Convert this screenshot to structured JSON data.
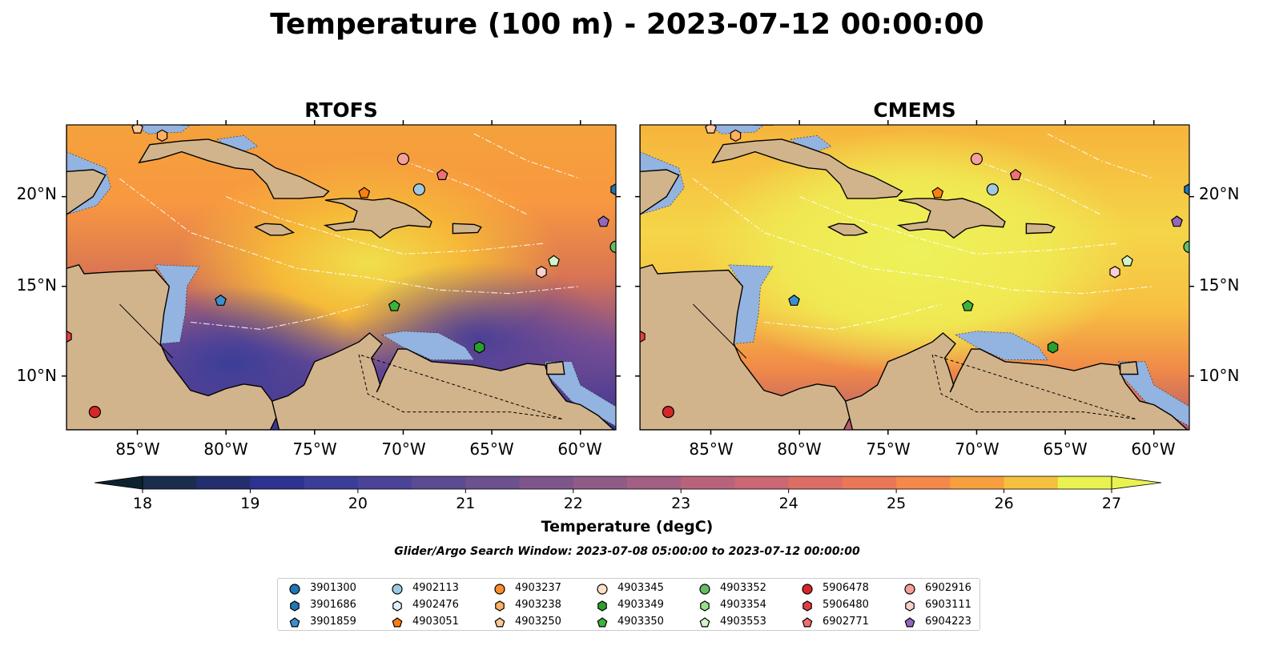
{
  "figure": {
    "title": "Temperature (100 m) - 2023-07-12 00:00:00",
    "search_window": "Glider/Argo Search Window: 2023-07-08 05:00:00 to 2023-07-12 00:00:00"
  },
  "panels": [
    {
      "title": "RTOFS",
      "model": "rtofs"
    },
    {
      "title": "CMEMS",
      "model": "cmems"
    }
  ],
  "map_extent": {
    "lon": [
      -89,
      -58
    ],
    "lat": [
      7,
      24
    ]
  },
  "x_ticks": [
    "85°W",
    "80°W",
    "75°W",
    "70°W",
    "65°W",
    "60°W"
  ],
  "y_ticks": [
    "20°N",
    "15°N",
    "10°N"
  ],
  "colorbar": {
    "label": "Temperature (degC)",
    "min": 18,
    "max": 27,
    "step": 0.5,
    "ticks": [
      "18",
      "19",
      "20",
      "21",
      "22",
      "23",
      "24",
      "25",
      "26",
      "27"
    ],
    "extend": "both",
    "colormap": "thermal"
  },
  "colors": {
    "land": "#d2b48c",
    "shelf": "#93b3e0",
    "coast": "#000000",
    "floats": {
      "blue": "#1f77b4",
      "lightblue": "#9ecae1",
      "orange": "#ff7f0e",
      "lightorange": "#ffbb78",
      "peach": "#fdd9b5",
      "green": "#2ca02c",
      "lightgreen": "#98df8a",
      "red": "#d62728",
      "salmon": "#ff9896",
      "purple": "#9467bd",
      "midgreen": "#5cba5c",
      "midblue": "#6baed6"
    }
  },
  "legend": {
    "columns": [
      [
        {
          "label": "3901300",
          "shape": "circle",
          "color": "#1f77b4"
        },
        {
          "label": "3901686",
          "shape": "hexagon",
          "color": "#1f77b4"
        },
        {
          "label": "3901859",
          "shape": "pentagon",
          "color": "#3a8fd0"
        }
      ],
      [
        {
          "label": "4902113",
          "shape": "circle",
          "color": "#9ecae1"
        },
        {
          "label": "4902476",
          "shape": "hexagon",
          "color": "#deeffa"
        },
        {
          "label": "4903051",
          "shape": "pentagon",
          "color": "#ff7f0e"
        }
      ],
      [
        {
          "label": "4903237",
          "shape": "circle",
          "color": "#ff8c2a"
        },
        {
          "label": "4903238",
          "shape": "hexagon",
          "color": "#ffb060"
        },
        {
          "label": "4903250",
          "shape": "pentagon",
          "color": "#ffc896"
        }
      ],
      [
        {
          "label": "4903345",
          "shape": "circle",
          "color": "#fde0c5"
        },
        {
          "label": "4903349",
          "shape": "hexagon",
          "color": "#2ca02c"
        },
        {
          "label": "4903350",
          "shape": "pentagon",
          "color": "#3cb43c"
        }
      ],
      [
        {
          "label": "4903352",
          "shape": "circle",
          "color": "#66bd63"
        },
        {
          "label": "4903354",
          "shape": "hexagon",
          "color": "#98df8a"
        },
        {
          "label": "4903553",
          "shape": "pentagon",
          "color": "#d2f5c8"
        }
      ],
      [
        {
          "label": "5906478",
          "shape": "circle",
          "color": "#d62728"
        },
        {
          "label": "5906480",
          "shape": "hexagon",
          "color": "#e04040"
        },
        {
          "label": "6902771",
          "shape": "pentagon",
          "color": "#f07070"
        }
      ],
      [
        {
          "label": "6902916",
          "shape": "circle",
          "color": "#f4a09a"
        },
        {
          "label": "6903111",
          "shape": "hexagon",
          "color": "#fbd0cc"
        },
        {
          "label": "6904223",
          "shape": "pentagon",
          "color": "#9467bd"
        }
      ]
    ]
  },
  "float_positions": [
    {
      "id": "4903250",
      "lon": -85.0,
      "lat": 23.8
    },
    {
      "id": "4903238",
      "lon": -83.6,
      "lat": 23.4
    },
    {
      "id": "6902916",
      "lon": -70.0,
      "lat": 22.1
    },
    {
      "id": "6902771",
      "lon": -67.8,
      "lat": 21.2
    },
    {
      "id": "4903051",
      "lon": -72.2,
      "lat": 20.2
    },
    {
      "id": "4902113",
      "lon": -69.1,
      "lat": 20.4
    },
    {
      "id": "3901686",
      "lon": -58.0,
      "lat": 20.4
    },
    {
      "id": "6904223",
      "lon": -58.7,
      "lat": 18.6
    },
    {
      "id": "4903352",
      "lon": -58.0,
      "lat": 17.2
    },
    {
      "id": "4903553",
      "lon": -61.5,
      "lat": 16.4
    },
    {
      "id": "6903111",
      "lon": -62.2,
      "lat": 15.8
    },
    {
      "id": "3901859",
      "lon": -80.3,
      "lat": 14.2
    },
    {
      "id": "4903350",
      "lon": -70.5,
      "lat": 13.9
    },
    {
      "id": "4903349",
      "lon": -65.7,
      "lat": 11.6
    },
    {
      "id": "5906480",
      "lon": -89.0,
      "lat": 12.2
    },
    {
      "id": "5906478",
      "lon": -87.4,
      "lat": 8.0
    }
  ]
}
